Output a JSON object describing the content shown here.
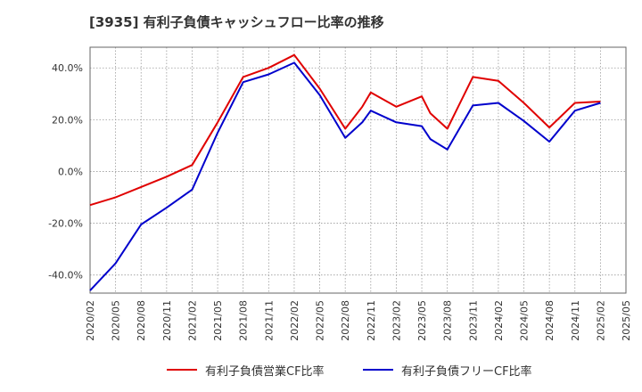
{
  "title": "[3935]  有利子負債キャッシュフロー比率の推移",
  "colors": {
    "series1": "#e00000",
    "series2": "#0000cc",
    "grid": "#999999",
    "axis": "#666666"
  },
  "chart_data": {
    "type": "line",
    "ylim": [
      -0.47,
      0.48
    ],
    "y_ticks": [
      {
        "value": -0.4,
        "label": "-40.0%"
      },
      {
        "value": -0.2,
        "label": "-20.0%"
      },
      {
        "value": 0.0,
        "label": "0.0%"
      },
      {
        "value": 0.2,
        "label": "20.0%"
      },
      {
        "value": 0.4,
        "label": "40.0%"
      }
    ],
    "x_range": [
      "2020/02",
      "2025/05"
    ],
    "x_ticks": [
      "2020/02",
      "2020/05",
      "2020/08",
      "2020/11",
      "2021/02",
      "2021/05",
      "2021/08",
      "2021/11",
      "2022/02",
      "2022/05",
      "2022/08",
      "2022/11",
      "2023/02",
      "2023/05",
      "2023/08",
      "2023/11",
      "2024/02",
      "2024/05",
      "2024/08",
      "2024/11",
      "2025/02",
      "2025/05"
    ],
    "grid": true,
    "legend_position": "bottom",
    "series": [
      {
        "name": "有利子負債営業CF比率",
        "color": "#e00000",
        "points": [
          [
            "2020/02",
            -0.13
          ],
          [
            "2020/05",
            -0.1
          ],
          [
            "2020/08",
            -0.06
          ],
          [
            "2020/11",
            -0.02
          ],
          [
            "2021/02",
            0.025
          ],
          [
            "2021/05",
            0.19
          ],
          [
            "2021/08",
            0.365
          ],
          [
            "2021/11",
            0.4
          ],
          [
            "2022/02",
            0.45
          ],
          [
            "2022/05",
            0.32
          ],
          [
            "2022/08",
            0.165
          ],
          [
            "2022/10",
            0.25
          ],
          [
            "2022/11",
            0.305
          ],
          [
            "2023/02",
            0.25
          ],
          [
            "2023/05",
            0.29
          ],
          [
            "2023/06",
            0.225
          ],
          [
            "2023/08",
            0.165
          ],
          [
            "2023/11",
            0.365
          ],
          [
            "2024/02",
            0.35
          ],
          [
            "2024/05",
            0.265
          ],
          [
            "2024/08",
            0.17
          ],
          [
            "2024/11",
            0.265
          ],
          [
            "2025/02",
            0.27
          ]
        ]
      },
      {
        "name": "有利子負債フリーCF比率",
        "color": "#0000cc",
        "points": [
          [
            "2020/02",
            -0.46
          ],
          [
            "2020/05",
            -0.355
          ],
          [
            "2020/08",
            -0.205
          ],
          [
            "2020/11",
            -0.14
          ],
          [
            "2021/02",
            -0.07
          ],
          [
            "2021/05",
            0.15
          ],
          [
            "2021/08",
            0.345
          ],
          [
            "2021/11",
            0.375
          ],
          [
            "2022/02",
            0.42
          ],
          [
            "2022/05",
            0.295
          ],
          [
            "2022/08",
            0.13
          ],
          [
            "2022/10",
            0.19
          ],
          [
            "2022/11",
            0.235
          ],
          [
            "2023/02",
            0.19
          ],
          [
            "2023/05",
            0.175
          ],
          [
            "2023/06",
            0.125
          ],
          [
            "2023/08",
            0.085
          ],
          [
            "2023/11",
            0.255
          ],
          [
            "2024/02",
            0.265
          ],
          [
            "2024/05",
            0.195
          ],
          [
            "2024/08",
            0.115
          ],
          [
            "2024/11",
            0.235
          ],
          [
            "2025/02",
            0.265
          ]
        ]
      }
    ]
  }
}
